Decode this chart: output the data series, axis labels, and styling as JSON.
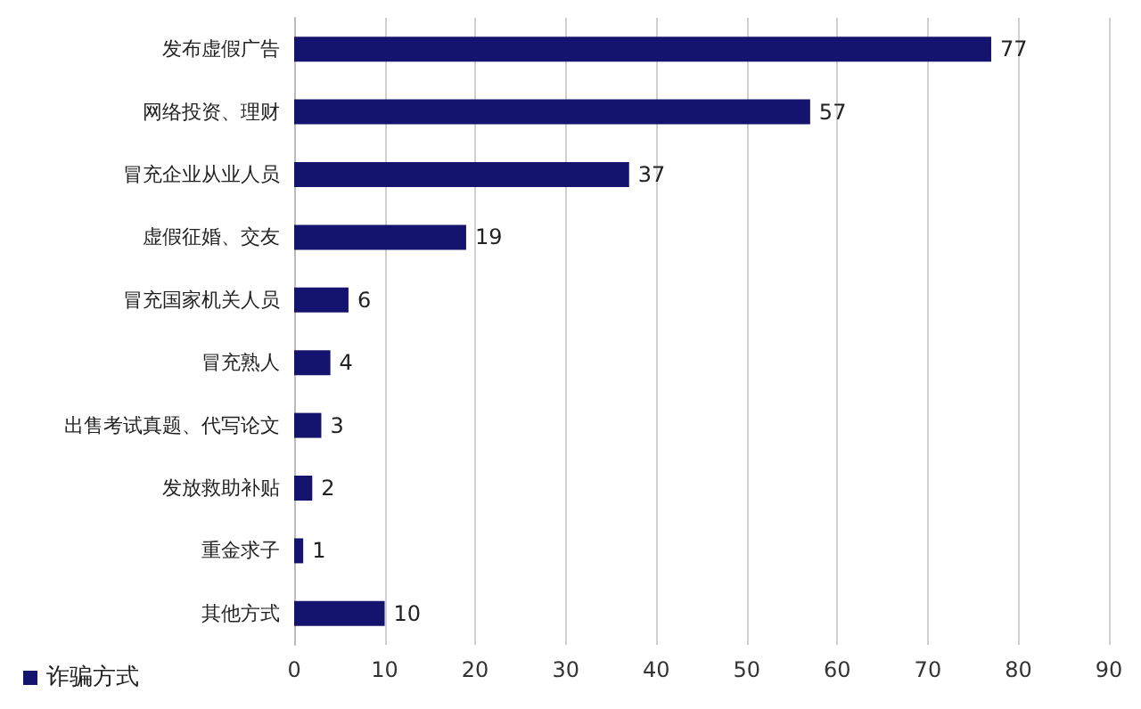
{
  "chart_data": {
    "type": "bar",
    "orientation": "horizontal",
    "categories": [
      "发布虚假广告",
      "网络投资、理财",
      "冒充企业从业人员",
      "虚假征婚、交友",
      "冒充国家机关人员",
      "冒充熟人",
      "出售考试真题、代写论文",
      "发放救助补贴",
      "重金求子",
      "其他方式"
    ],
    "series": [
      {
        "name": "诈骗方式",
        "color": "#14146e",
        "values": [
          77,
          57,
          37,
          19,
          6,
          4,
          3,
          2,
          1,
          10
        ]
      }
    ],
    "xlim": [
      0,
      90
    ],
    "xticks": [
      0,
      10,
      20,
      30,
      40,
      50,
      60,
      70,
      80,
      90
    ],
    "grid": "x",
    "legend": "bottom left",
    "data_labels": true
  }
}
